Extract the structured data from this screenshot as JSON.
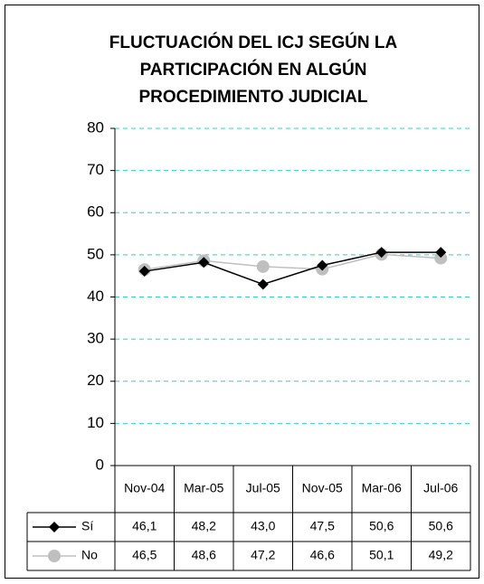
{
  "chart_data": {
    "type": "line",
    "title": [
      "FLUCTUACIÓN DEL ICJ SEGÚN LA",
      "PARTICIPACIÓN EN ALGÚN",
      "PROCEDIMIENTO JUDICIAL"
    ],
    "categories": [
      "Nov-04",
      "Mar-05",
      "Jul-05",
      "Nov-05",
      "Mar-06",
      "Jul-06"
    ],
    "series": [
      {
        "name": "Sí",
        "color": "#000000",
        "marker": "diamond",
        "values": [
          46.1,
          48.2,
          43.0,
          47.5,
          50.6,
          50.6
        ],
        "value_labels": [
          "46,1",
          "48,2",
          "43,0",
          "47,5",
          "50,6",
          "50,6"
        ]
      },
      {
        "name": "No",
        "color": "#bfbfbf",
        "marker": "circle",
        "values": [
          46.5,
          48.6,
          47.2,
          46.6,
          50.1,
          49.2
        ],
        "value_labels": [
          "46,5",
          "48,6",
          "47,2",
          "46,6",
          "50,1",
          "49,2"
        ]
      }
    ],
    "ylim": [
      0,
      80
    ],
    "yticks": [
      0,
      10,
      20,
      30,
      40,
      50,
      60,
      70,
      80
    ],
    "grid": true,
    "grid_color": "#33cccc"
  }
}
